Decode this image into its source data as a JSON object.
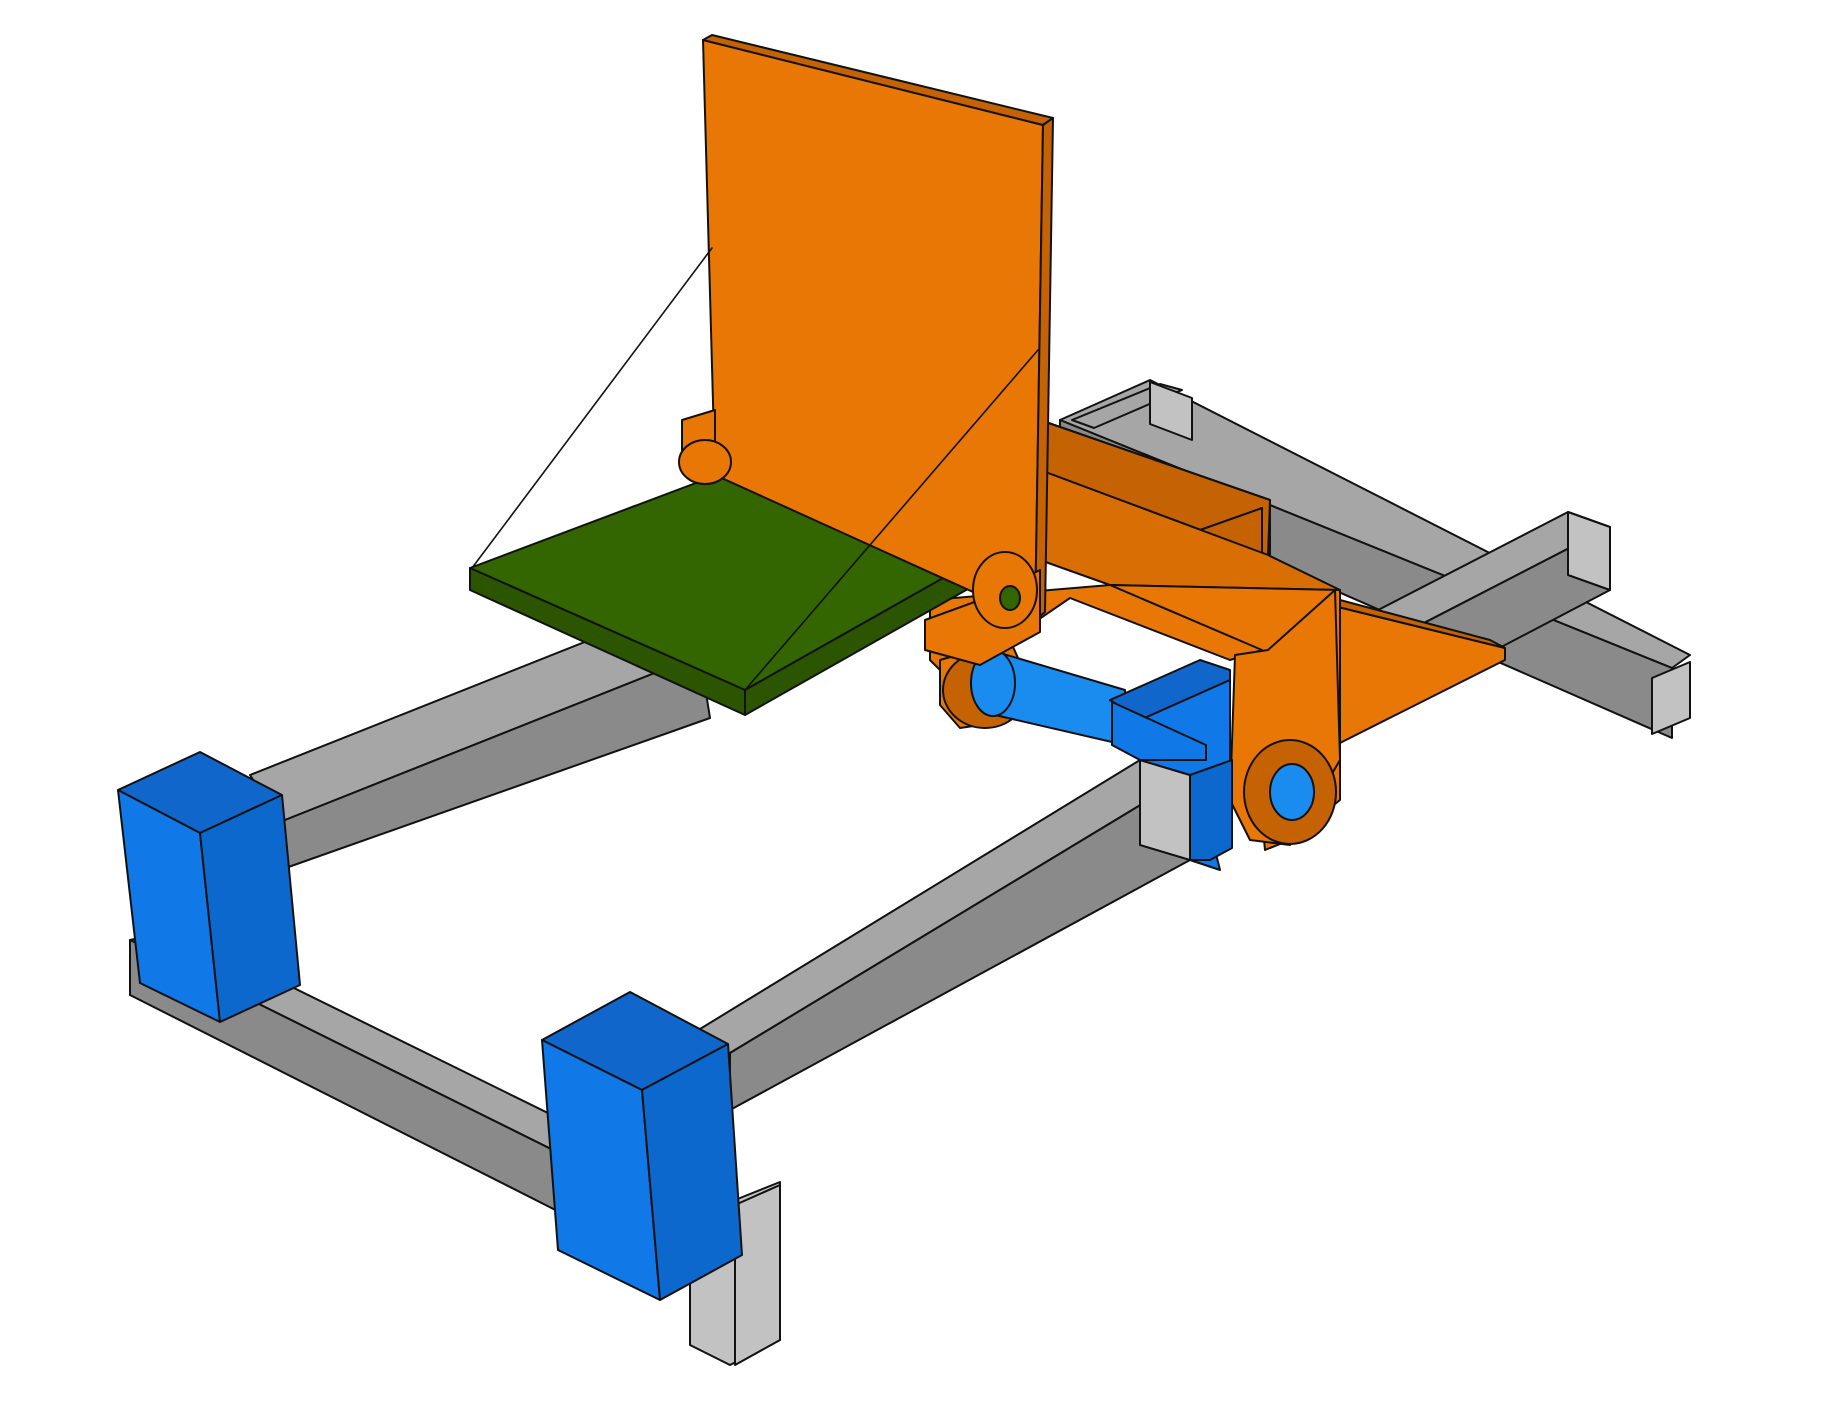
{
  "figure": {
    "description_type": "3d-mechanical-assembly-render",
    "background": "#ffffff",
    "palette": {
      "frame_top": "#a6a6a6",
      "frame_side": "#8a8a8a",
      "frame_end": "#c2c2c2",
      "block_front": "#1178e8",
      "block_side": "#0d68cd",
      "block_top": "#1166cc",
      "carriage_front": "#e87706",
      "carriage_side": "#c46204",
      "carriage_top": "#d96e05",
      "seat_top": "#336600",
      "seat_edge": "#2b5500",
      "rod": "#1a8cf0",
      "outline": "#111111"
    }
  }
}
